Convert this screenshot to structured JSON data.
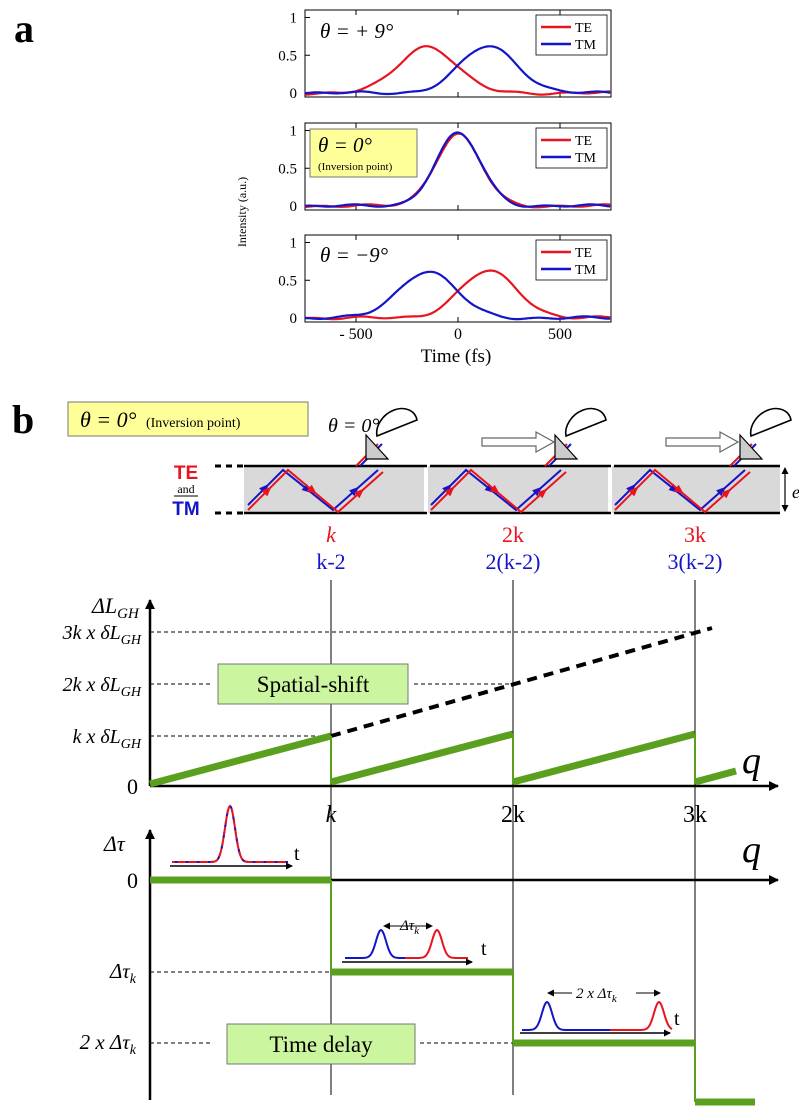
{
  "colors": {
    "te": "#e8141e",
    "tm": "#1414c8",
    "green": "#5aa01e",
    "yellowbox": "#ffff9a",
    "greenbox": "#ccf5a0",
    "glass": "#d9d9d9"
  },
  "panel_a": {
    "label": "a",
    "ylabel": "Intensity (a.u.)",
    "xlabel": "Time (fs)",
    "xticks": [
      "- 500",
      "0",
      "500"
    ],
    "yticks": [
      "1",
      "0.5",
      "0"
    ],
    "legend": [
      "TE",
      "TM"
    ],
    "theta_plus": "θ = + 9°",
    "theta_zero": "θ = 0°",
    "inversion": "(Inversion point)",
    "theta_minus": "θ = −9°"
  },
  "chart_data": [
    {
      "type": "line",
      "title": "θ = + 9°",
      "x_range": [
        -750,
        750
      ],
      "ylim": [
        0,
        1
      ],
      "series": [
        {
          "name": "TE",
          "peak_x": -150,
          "peak_y": 0.62,
          "width_fs": 140
        },
        {
          "name": "TM",
          "peak_x": 150,
          "peak_y": 0.62,
          "width_fs": 140
        }
      ]
    },
    {
      "type": "line",
      "title": "θ = 0°",
      "x_range": [
        -750,
        750
      ],
      "ylim": [
        0,
        1
      ],
      "series": [
        {
          "name": "TE",
          "peak_x": 0,
          "peak_y": 0.95,
          "width_fs": 110
        },
        {
          "name": "TM",
          "peak_x": 0,
          "peak_y": 0.96,
          "width_fs": 110
        }
      ]
    },
    {
      "type": "line",
      "title": "θ = −9°",
      "x_range": [
        -750,
        750
      ],
      "ylim": [
        0,
        1
      ],
      "series": [
        {
          "name": "TE",
          "peak_x": 150,
          "peak_y": 0.62,
          "width_fs": 140
        },
        {
          "name": "TM",
          "peak_x": -150,
          "peak_y": 0.62,
          "width_fs": 140
        }
      ]
    }
  ],
  "panel_b": {
    "label": "b",
    "theta_box": "θ = 0°",
    "theta_box_sub": "(Inversion point)",
    "theta_small": "θ = 0°",
    "te": "TE",
    "and": "and",
    "tm": "TM",
    "thickness": "e",
    "k_red": [
      "k",
      "2k",
      "3k"
    ],
    "k_blue": [
      "k-2",
      "2(k-2)",
      "3(k-2)"
    ],
    "ylabel_top": "ΔL",
    "ylabel_top_sub": "GH",
    "yticks_top": [
      "3k x δL",
      "2k x δL",
      "k x δL",
      "0"
    ],
    "ytick_sub": "GH",
    "spatial_shift": "Spatial-shift",
    "q": "q",
    "xticks": [
      "k",
      "2k",
      "3k"
    ],
    "ylabel_bottom": "Δτ",
    "yticks_bottom": [
      "0",
      "Δτ",
      "2 x Δτ"
    ],
    "ytick_bottom_sub": "k",
    "time_delay": "Time delay",
    "t": "t",
    "delta_tau_k": "Δτ",
    "two_delta_tau_k": "2 x Δτ"
  }
}
